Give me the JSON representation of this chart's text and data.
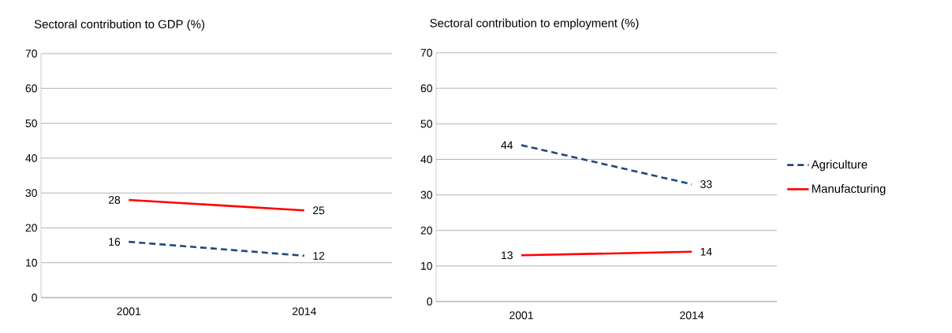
{
  "chart_data": [
    {
      "type": "line",
      "title": "Sectoral contribution  to GDP (%)",
      "categories": [
        "2001",
        "2014"
      ],
      "series": [
        {
          "color": "#1f497d",
          "line_style": "dashed",
          "values": [
            16,
            12
          ]
        },
        {
          "color": "#ff0000",
          "line_style": "solid",
          "values": [
            28,
            25
          ]
        }
      ],
      "ylim": [
        0,
        70
      ],
      "yticks": [
        0,
        10,
        20,
        30,
        40,
        50,
        60,
        70
      ],
      "grid": "y",
      "data_labels": true,
      "legend": false
    },
    {
      "type": "line",
      "title": "Sectoral contribution  to employment  (%)",
      "categories": [
        "2001",
        "2014"
      ],
      "series": [
        {
          "name": "Agriculture",
          "color": "#1f497d",
          "line_style": "dashed",
          "values": [
            44,
            33
          ]
        },
        {
          "name": "Manufacturing",
          "color": "#ff0000",
          "line_style": "solid",
          "values": [
            13,
            14
          ]
        }
      ],
      "ylim": [
        0,
        70
      ],
      "yticks": [
        0,
        10,
        20,
        30,
        40,
        50,
        60,
        70
      ],
      "grid": "y",
      "data_labels": true,
      "legend": "right"
    }
  ]
}
